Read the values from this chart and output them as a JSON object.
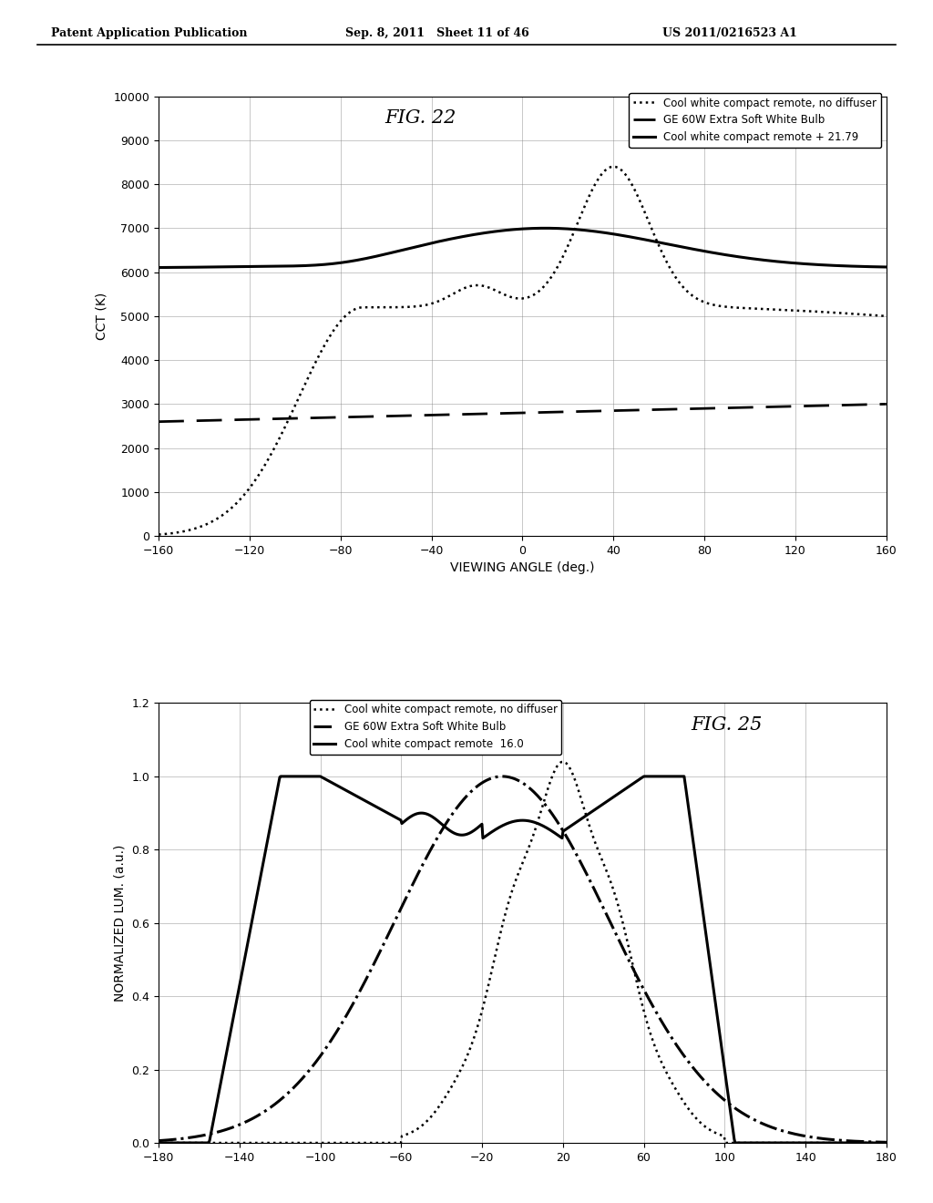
{
  "header_left": "Patent Application Publication",
  "header_mid": "Sep. 8, 2011   Sheet 11 of 46",
  "header_right": "US 2011/0216523 A1",
  "fig22_title": "FIG. 22",
  "fig25_title": "FIG. 25",
  "fig22_xlabel": "VIEWING ANGLE (deg.)",
  "fig22_ylabel": "CCT (K)",
  "fig22_xlim": [
    -160,
    160
  ],
  "fig22_ylim": [
    0,
    10000
  ],
  "fig22_yticks": [
    0,
    1000,
    2000,
    3000,
    4000,
    5000,
    6000,
    7000,
    8000,
    9000,
    10000
  ],
  "fig22_xticks": [
    -160,
    -120,
    -80,
    -40,
    0,
    40,
    80,
    120,
    160
  ],
  "fig25_ylabel": "NORMALIZED LUM. (a.u.)",
  "fig25_xlim": [
    -180,
    180
  ],
  "fig25_ylim": [
    0,
    1.2
  ],
  "fig25_yticks": [
    0,
    0.2,
    0.4,
    0.6,
    0.8,
    1.0,
    1.2
  ],
  "fig25_xticks": [
    -180,
    -140,
    -100,
    -60,
    -20,
    20,
    60,
    100,
    140,
    180
  ],
  "legend22_entries": [
    "Cool white compact remote, no diffuser",
    "GE 60W Extra Soft White Bulb",
    "Cool white compact remote + 21.79"
  ],
  "legend25_entries": [
    "Cool white compact remote, no diffuser",
    "GE 60W Extra Soft White Bulb",
    "Cool white compact remote  16.0"
  ],
  "background_color": "#ffffff",
  "text_color": "#000000"
}
